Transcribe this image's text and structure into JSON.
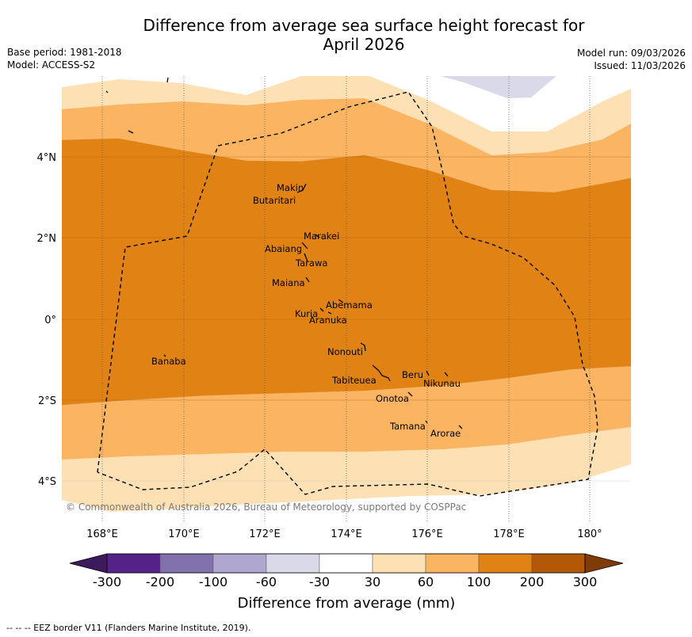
{
  "header": {
    "title_line1": "Difference from average sea surface height forecast for",
    "title_line2": "April 2026",
    "base_period": "Base period: 1981-2018",
    "model": "Model: ACCESS-S2",
    "model_run": "Model run: 09/03/2026",
    "issued": "Issued: 11/03/2026"
  },
  "map": {
    "lat_labels": [
      "4°N",
      "2°N",
      "0°",
      "2°S",
      "4°S"
    ],
    "lon_labels": [
      "168°E",
      "170°E",
      "172°E",
      "174°E",
      "176°E",
      "178°E",
      "180°"
    ],
    "places": [
      "Makin",
      "Butaritari",
      "Marakei",
      "Abaiang",
      "Tarawa",
      "Maiana",
      "Abemama",
      "Kuria",
      "Aranuka",
      "Nonouti",
      "Banaba",
      "Beru",
      "Nikunau",
      "Tabiteuea",
      "Onotoa",
      "Tamana",
      "Arorae"
    ],
    "copyright": "© Commonwealth of Australia 2026, Bureau of Meteorology, supported by COSPPac"
  },
  "colorbar": {
    "ticks": [
      "-300",
      "-200",
      "-100",
      "-60",
      "-30",
      "30",
      "60",
      "100",
      "200",
      "300"
    ],
    "colors": [
      "#3d1a5e",
      "#552287",
      "#8172ad",
      "#b0a7d0",
      "#d9d9ea",
      "#ffffff",
      "#fde0b4",
      "#fbb461",
      "#e08214",
      "#b35806",
      "#7f3b08"
    ],
    "title": "Difference from average (mm)"
  },
  "footnote": "--  --  -- EEZ border V11 (Flanders Marine Institute, 2019)."
}
